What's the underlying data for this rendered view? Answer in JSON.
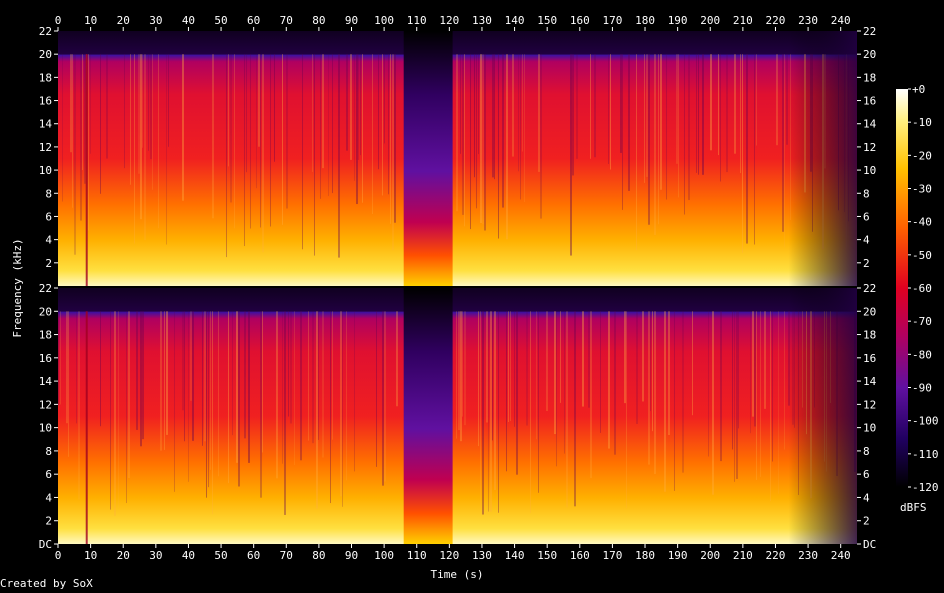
{
  "chart_data": {
    "type": "heatmap",
    "title": "",
    "xlabel": "Time (s)",
    "ylabel": "Frequency (kHz)",
    "x_ticks": [
      0,
      10,
      20,
      30,
      40,
      50,
      60,
      70,
      80,
      90,
      100,
      110,
      120,
      130,
      140,
      150,
      160,
      170,
      180,
      190,
      200,
      210,
      220,
      230,
      240
    ],
    "xlim": [
      0,
      245
    ],
    "channels": [
      {
        "name": "",
        "y_tick_labels": [
          "22",
          "20",
          "18",
          "16",
          "14",
          "12",
          "10",
          "8",
          "6",
          "4",
          "2"
        ]
      },
      {
        "name": "",
        "y_tick_labels": [
          "22",
          "20",
          "18",
          "16",
          "14",
          "12",
          "10",
          "8",
          "6",
          "4",
          "2",
          "DC"
        ]
      }
    ],
    "ylim_khz": [
      0,
      22
    ],
    "colorbar": {
      "label": "dBFS",
      "ticks": [
        "+0",
        "-10",
        "-20",
        "-30",
        "-40",
        "-50",
        "-60",
        "-70",
        "-80",
        "-90",
        "-100",
        "-110",
        "-120"
      ],
      "range": [
        -120,
        0
      ]
    },
    "features": {
      "quiet_gap_seconds": [
        106,
        121
      ],
      "lowpass_cutoff_khz": 20,
      "fade_out_start_seconds": 230,
      "dark_line_seconds": 8.5
    }
  },
  "footer": {
    "credit": "Created by SoX"
  }
}
